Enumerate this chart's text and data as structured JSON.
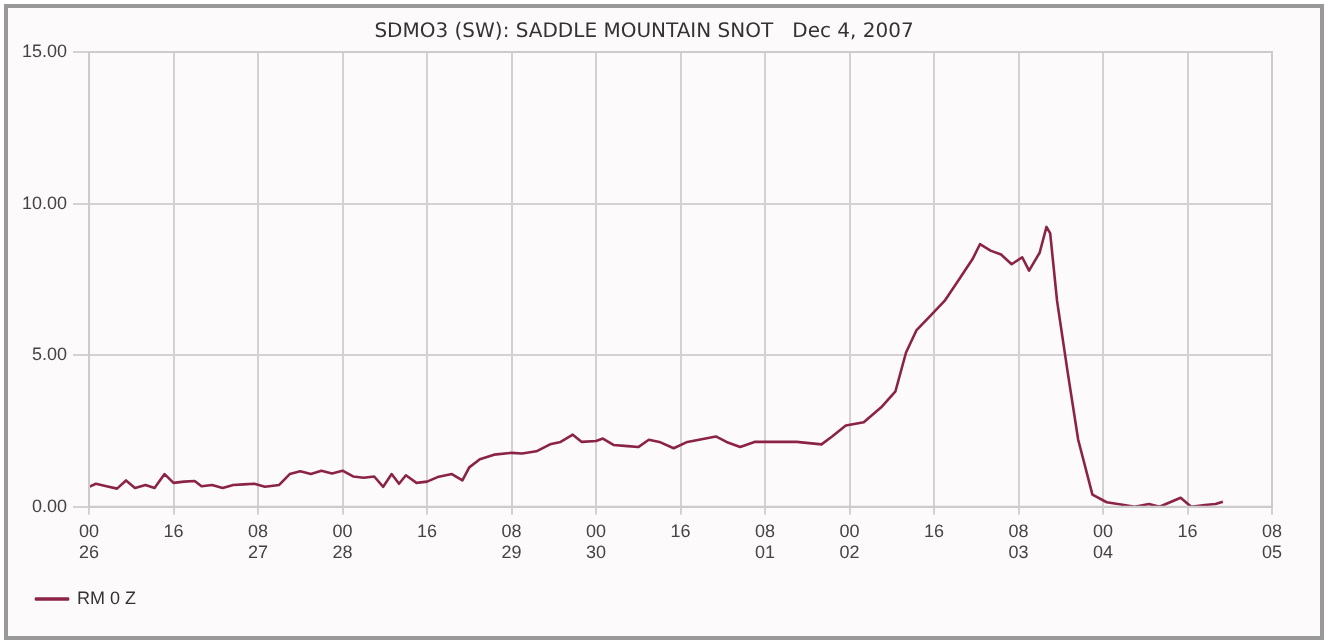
{
  "chart_data": {
    "type": "line",
    "title": "SDMO3 (SW): SADDLE MOUNTAIN SNOT   Dec 4, 2007",
    "x": [
      "2007-11-26T00:00",
      "2007-11-26T01:18",
      "2007-11-26T03:18",
      "2007-11-26T05:18",
      "2007-11-26T07:00",
      "2007-11-26T08:42",
      "2007-11-26T10:42",
      "2007-11-26T12:24",
      "2007-11-26T14:18",
      "2007-11-26T16:00",
      "2007-11-26T18:00",
      "2007-11-26T20:00",
      "2007-11-26T21:18",
      "2007-11-26T23:18",
      "2007-11-27T01:18",
      "2007-11-27T03:18",
      "2007-11-27T05:18",
      "2007-11-27T07:18",
      "2007-11-27T09:18",
      "2007-11-27T12:00",
      "2007-11-27T14:00",
      "2007-11-27T16:00",
      "2007-11-27T18:00",
      "2007-11-27T20:00",
      "2007-11-27T22:00",
      "2007-11-28T00:00",
      "2007-11-28T02:00",
      "2007-11-28T04:00",
      "2007-11-28T06:00",
      "2007-11-28T07:42",
      "2007-11-28T09:18",
      "2007-11-28T10:42",
      "2007-11-28T12:00",
      "2007-11-28T14:00",
      "2007-11-28T16:00",
      "2007-11-28T18:00",
      "2007-11-28T20:42",
      "2007-11-28T22:42",
      "2007-11-29T00:00",
      "2007-11-29T02:00",
      "2007-11-29T04:42",
      "2007-11-29T08:00",
      "2007-11-29T10:00",
      "2007-11-29T12:42",
      "2007-11-29T15:18",
      "2007-11-29T17:18",
      "2007-11-29T19:36",
      "2007-11-29T21:18",
      "2007-11-30T00:00",
      "2007-11-30T01:18",
      "2007-11-30T03:18",
      "2007-11-30T06:00",
      "2007-11-30T08:00",
      "2007-11-30T10:00",
      "2007-11-30T12:00",
      "2007-11-30T14:42",
      "2007-11-30T17:18",
      "2007-11-30T22:42",
      "2007-12-01T00:42",
      "2007-12-01T03:18",
      "2007-12-01T06:00",
      "2007-12-01T08:42",
      "2007-12-01T14:00",
      "2007-12-01T18:42",
      "2007-12-01T20:42",
      "2007-12-01T23:18",
      "2007-12-02T02:42",
      "2007-12-02T06:00",
      "2007-12-02T08:42",
      "2007-12-02T10:42",
      "2007-12-02T12:42",
      "2007-12-02T15:18",
      "2007-12-02T18:00",
      "2007-12-02T20:42",
      "2007-12-02T23:18",
      "2007-12-03T00:42",
      "2007-12-03T02:42",
      "2007-12-03T04:42",
      "2007-12-03T06:42",
      "2007-12-03T08:42",
      "2007-12-03T10:00",
      "2007-12-03T12:00",
      "2007-12-03T13:18",
      "2007-12-03T14:00",
      "2007-12-03T15:18",
      "2007-12-03T17:18",
      "2007-12-03T19:18",
      "2007-12-03T22:00",
      "2007-12-04T00:42",
      "2007-12-04T04:00",
      "2007-12-04T06:00",
      "2007-12-04T08:42",
      "2007-12-04T10:42",
      "2007-12-04T12:42",
      "2007-12-04T14:42",
      "2007-12-04T16:42",
      "2007-12-04T19:18",
      "2007-12-04T21:18",
      "2007-12-04T22:42"
    ],
    "series": [
      {
        "name": "RM 0 Z",
        "color": "#8b2346",
        "values": [
          0.66,
          0.76,
          0.68,
          0.6,
          0.87,
          0.62,
          0.72,
          0.62,
          1.08,
          0.79,
          0.83,
          0.85,
          0.68,
          0.72,
          0.62,
          0.72,
          0.74,
          0.76,
          0.66,
          0.72,
          1.08,
          1.17,
          1.08,
          1.19,
          1.1,
          1.19,
          1.0,
          0.96,
          1.0,
          0.66,
          1.08,
          0.76,
          1.04,
          0.79,
          0.83,
          0.98,
          1.08,
          0.87,
          1.3,
          1.57,
          1.72,
          1.78,
          1.76,
          1.83,
          2.06,
          2.14,
          2.38,
          2.14,
          2.17,
          2.25,
          2.04,
          2.0,
          1.97,
          2.21,
          2.14,
          1.93,
          2.14,
          2.32,
          2.14,
          1.97,
          2.14,
          2.14,
          2.14,
          2.06,
          2.32,
          2.68,
          2.79,
          3.28,
          3.81,
          5.09,
          5.83,
          6.3,
          6.79,
          7.49,
          8.17,
          8.66,
          8.45,
          8.32,
          8.0,
          8.23,
          7.79,
          8.38,
          9.23,
          9.02,
          6.79,
          4.45,
          2.21,
          0.4,
          0.15,
          0.06,
          0.0,
          0.09,
          0.0,
          0.15,
          0.3,
          0.0,
          0.06,
          0.09,
          0.17
        ]
      }
    ],
    "xlim": [
      "2007-11-26T00:00",
      "2007-12-05T08:00"
    ],
    "xticks": [
      {
        "value": "2007-11-26T00:00",
        "label": "00\n26"
      },
      {
        "value": "2007-11-26T16:00",
        "label": "16"
      },
      {
        "value": "2007-11-27T08:00",
        "label": "08\n27"
      },
      {
        "value": "2007-11-28T00:00",
        "label": "00\n28"
      },
      {
        "value": "2007-11-28T16:00",
        "label": "16"
      },
      {
        "value": "2007-11-29T08:00",
        "label": "08\n29"
      },
      {
        "value": "2007-11-30T00:00",
        "label": "00\n30"
      },
      {
        "value": "2007-11-30T16:00",
        "label": "16"
      },
      {
        "value": "2007-12-01T08:00",
        "label": "08\n01"
      },
      {
        "value": "2007-12-02T00:00",
        "label": "00\n02"
      },
      {
        "value": "2007-12-02T16:00",
        "label": "16"
      },
      {
        "value": "2007-12-03T08:00",
        "label": "08\n03"
      },
      {
        "value": "2007-12-04T00:00",
        "label": "00\n04"
      },
      {
        "value": "2007-12-04T16:00",
        "label": "16"
      },
      {
        "value": "2007-12-05T08:00",
        "label": "08\n05"
      }
    ],
    "ylim": [
      0,
      15
    ],
    "yticks": [
      {
        "value": 0,
        "label": "0.00"
      },
      {
        "value": 5,
        "label": "5.00"
      },
      {
        "value": 10,
        "label": "10.00"
      },
      {
        "value": 15,
        "label": "15.00"
      }
    ],
    "grid": true,
    "legend": "bottom left",
    "marker": "none",
    "line_style": "solid"
  }
}
